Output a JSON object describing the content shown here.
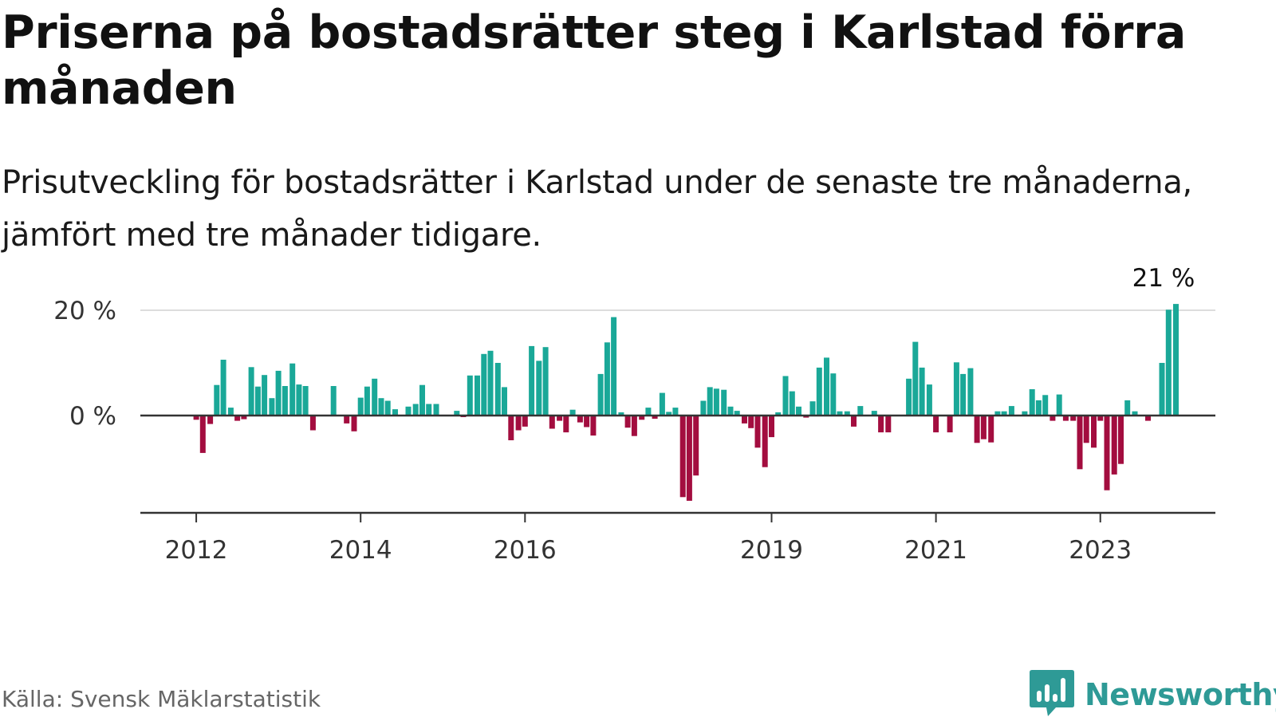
{
  "title": "Priserna på bostadsrätter steg i Karlstad förra månaden",
  "subtitle": "Prisutveckling för bostadsrätter i Karlstad under de senaste tre månaderna, jämfört med tre månader tidigare.",
  "source": "Källa: Svensk Mäklarstatistik",
  "brand": {
    "name": "Newsworthy",
    "logo_icon": "bar-chart-speech-bubble-icon",
    "color": "#2e9a96"
  },
  "colors": {
    "positive": "#1aa898",
    "negative": "#a30d3f",
    "grid": "#dddddd",
    "axis": "#333333"
  },
  "chart_data": {
    "type": "bar",
    "title": "Priserna på bostadsrätter steg i Karlstad förra månaden",
    "subtitle": "Prisutveckling för bostadsrätter i Karlstad under de senaste tre månaderna, jämfört med tre månader tidigare.",
    "unit": "%",
    "ylim": [
      -18,
      21
    ],
    "y_ticks": [
      {
        "value": 0,
        "label": "0 %"
      },
      {
        "value": 20,
        "label": "20 %"
      }
    ],
    "x_range": [
      2011.32,
      2024.4
    ],
    "x_ticks": [
      {
        "value": 2012,
        "label": "2012"
      },
      {
        "value": 2014,
        "label": "2014"
      },
      {
        "value": 2016,
        "label": "2016"
      },
      {
        "value": 2019,
        "label": "2019"
      },
      {
        "value": 2021,
        "label": "2021"
      },
      {
        "value": 2023,
        "label": "2023"
      }
    ],
    "grid": true,
    "annotation": {
      "text": "21 %",
      "x": 2023.83,
      "value": 21.2
    },
    "series": [
      {
        "values": [
          {
            "x": 2012.0,
            "value": -0.8
          },
          {
            "x": 2012.08,
            "value": -7.1
          },
          {
            "x": 2012.17,
            "value": -1.6
          },
          {
            "x": 2012.25,
            "value": 5.8
          },
          {
            "x": 2012.33,
            "value": 10.6
          },
          {
            "x": 2012.42,
            "value": 1.5
          },
          {
            "x": 2012.5,
            "value": -1.0
          },
          {
            "x": 2012.58,
            "value": -0.7
          },
          {
            "x": 2012.67,
            "value": 9.2
          },
          {
            "x": 2012.75,
            "value": 5.5
          },
          {
            "x": 2012.83,
            "value": 7.7
          },
          {
            "x": 2012.92,
            "value": 3.3
          },
          {
            "x": 2013.0,
            "value": 8.5
          },
          {
            "x": 2013.08,
            "value": 5.6
          },
          {
            "x": 2013.17,
            "value": 9.9
          },
          {
            "x": 2013.25,
            "value": 5.9
          },
          {
            "x": 2013.33,
            "value": 5.6
          },
          {
            "x": 2013.42,
            "value": -2.8
          },
          {
            "x": 2013.67,
            "value": 5.6
          },
          {
            "x": 2013.83,
            "value": -1.5
          },
          {
            "x": 2013.92,
            "value": -3.0
          },
          {
            "x": 2014.0,
            "value": 3.4
          },
          {
            "x": 2014.08,
            "value": 5.5
          },
          {
            "x": 2014.17,
            "value": 7.0
          },
          {
            "x": 2014.25,
            "value": 3.3
          },
          {
            "x": 2014.33,
            "value": 2.8
          },
          {
            "x": 2014.42,
            "value": 1.2
          },
          {
            "x": 2014.58,
            "value": 1.7
          },
          {
            "x": 2014.67,
            "value": 2.2
          },
          {
            "x": 2014.75,
            "value": 5.8
          },
          {
            "x": 2014.83,
            "value": 2.2
          },
          {
            "x": 2014.92,
            "value": 2.2
          },
          {
            "x": 2015.17,
            "value": 0.9
          },
          {
            "x": 2015.25,
            "value": -0.3
          },
          {
            "x": 2015.33,
            "value": 7.6
          },
          {
            "x": 2015.42,
            "value": 7.6
          },
          {
            "x": 2015.5,
            "value": 11.7
          },
          {
            "x": 2015.58,
            "value": 12.3
          },
          {
            "x": 2015.67,
            "value": 10.0
          },
          {
            "x": 2015.75,
            "value": 5.4
          },
          {
            "x": 2015.83,
            "value": -4.7
          },
          {
            "x": 2015.92,
            "value": -2.8
          },
          {
            "x": 2016.0,
            "value": -2.1
          },
          {
            "x": 2016.08,
            "value": 13.2
          },
          {
            "x": 2016.17,
            "value": 10.4
          },
          {
            "x": 2016.25,
            "value": 13.0
          },
          {
            "x": 2016.33,
            "value": -2.5
          },
          {
            "x": 2016.42,
            "value": -1.0
          },
          {
            "x": 2016.5,
            "value": -3.2
          },
          {
            "x": 2016.58,
            "value": 1.1
          },
          {
            "x": 2016.67,
            "value": -1.3
          },
          {
            "x": 2016.75,
            "value": -2.2
          },
          {
            "x": 2016.83,
            "value": -3.8
          },
          {
            "x": 2016.92,
            "value": 7.9
          },
          {
            "x": 2017.0,
            "value": 13.9
          },
          {
            "x": 2017.08,
            "value": 18.7
          },
          {
            "x": 2017.17,
            "value": 0.6
          },
          {
            "x": 2017.25,
            "value": -2.3
          },
          {
            "x": 2017.33,
            "value": -3.9
          },
          {
            "x": 2017.42,
            "value": -0.8
          },
          {
            "x": 2017.5,
            "value": 1.5
          },
          {
            "x": 2017.58,
            "value": -0.6
          },
          {
            "x": 2017.67,
            "value": 4.3
          },
          {
            "x": 2017.75,
            "value": 0.7
          },
          {
            "x": 2017.83,
            "value": 1.5
          },
          {
            "x": 2017.92,
            "value": -15.5
          },
          {
            "x": 2018.0,
            "value": -16.2
          },
          {
            "x": 2018.08,
            "value": -11.4
          },
          {
            "x": 2018.17,
            "value": 2.8
          },
          {
            "x": 2018.25,
            "value": 5.4
          },
          {
            "x": 2018.33,
            "value": 5.1
          },
          {
            "x": 2018.42,
            "value": 4.9
          },
          {
            "x": 2018.5,
            "value": 1.7
          },
          {
            "x": 2018.58,
            "value": 0.9
          },
          {
            "x": 2018.67,
            "value": -1.5
          },
          {
            "x": 2018.75,
            "value": -2.4
          },
          {
            "x": 2018.83,
            "value": -6.1
          },
          {
            "x": 2018.92,
            "value": -9.8
          },
          {
            "x": 2019.0,
            "value": -4.1
          },
          {
            "x": 2019.08,
            "value": 0.6
          },
          {
            "x": 2019.17,
            "value": 7.5
          },
          {
            "x": 2019.25,
            "value": 4.6
          },
          {
            "x": 2019.33,
            "value": 1.7
          },
          {
            "x": 2019.42,
            "value": -0.4
          },
          {
            "x": 2019.5,
            "value": 2.7
          },
          {
            "x": 2019.58,
            "value": 9.1
          },
          {
            "x": 2019.67,
            "value": 11.0
          },
          {
            "x": 2019.75,
            "value": 8.0
          },
          {
            "x": 2019.83,
            "value": 0.8
          },
          {
            "x": 2019.92,
            "value": 0.8
          },
          {
            "x": 2020.0,
            "value": -2.1
          },
          {
            "x": 2020.08,
            "value": 1.8
          },
          {
            "x": 2020.25,
            "value": 0.9
          },
          {
            "x": 2020.33,
            "value": -3.2
          },
          {
            "x": 2020.42,
            "value": -3.2
          },
          {
            "x": 2020.67,
            "value": 7.0
          },
          {
            "x": 2020.75,
            "value": 14.0
          },
          {
            "x": 2020.83,
            "value": 9.1
          },
          {
            "x": 2020.92,
            "value": 5.9
          },
          {
            "x": 2021.0,
            "value": -3.2
          },
          {
            "x": 2021.17,
            "value": -3.2
          },
          {
            "x": 2021.25,
            "value": 10.1
          },
          {
            "x": 2021.33,
            "value": 7.9
          },
          {
            "x": 2021.42,
            "value": 9.0
          },
          {
            "x": 2021.5,
            "value": -5.2
          },
          {
            "x": 2021.58,
            "value": -4.5
          },
          {
            "x": 2021.67,
            "value": -5.1
          },
          {
            "x": 2021.75,
            "value": 0.8
          },
          {
            "x": 2021.83,
            "value": 0.8
          },
          {
            "x": 2021.92,
            "value": 1.8
          },
          {
            "x": 2022.08,
            "value": 0.8
          },
          {
            "x": 2022.17,
            "value": 5.0
          },
          {
            "x": 2022.25,
            "value": 2.9
          },
          {
            "x": 2022.33,
            "value": 3.9
          },
          {
            "x": 2022.42,
            "value": -1.0
          },
          {
            "x": 2022.5,
            "value": 4.0
          },
          {
            "x": 2022.58,
            "value": -1.0
          },
          {
            "x": 2022.67,
            "value": -1.0
          },
          {
            "x": 2022.75,
            "value": -10.2
          },
          {
            "x": 2022.83,
            "value": -5.2
          },
          {
            "x": 2022.92,
            "value": -6.1
          },
          {
            "x": 2023.0,
            "value": -1.0
          },
          {
            "x": 2023.08,
            "value": -14.2
          },
          {
            "x": 2023.17,
            "value": -11.2
          },
          {
            "x": 2023.25,
            "value": -9.2
          },
          {
            "x": 2023.33,
            "value": 2.9
          },
          {
            "x": 2023.42,
            "value": 0.8
          },
          {
            "x": 2023.58,
            "value": -1.0
          },
          {
            "x": 2023.75,
            "value": 10.0
          },
          {
            "x": 2023.83,
            "value": 20.1
          },
          {
            "x": 2023.92,
            "value": 21.2
          }
        ]
      }
    ]
  }
}
